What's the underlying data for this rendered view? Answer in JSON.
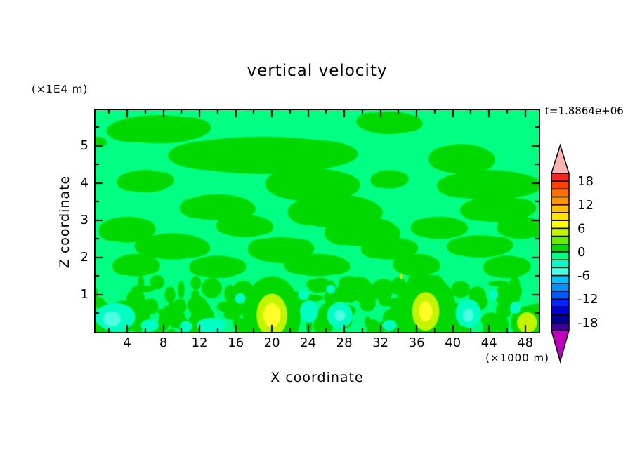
{
  "chart_data": {
    "type": "heatmap",
    "title": "vertical velocity",
    "time_label": "t=1.8864e+06",
    "xlabel": "X coordinate",
    "x_unit": "(×1000 m)",
    "ylabel": "Z coordinate",
    "y_unit": "(×1E4 m)",
    "x_range": [
      0.5,
      49.5
    ],
    "y_range": [
      0,
      5.96
    ],
    "x_ticks_major": [
      4,
      8,
      12,
      16,
      20,
      24,
      28,
      32,
      36,
      40,
      44,
      48
    ],
    "x_ticks_minor": [
      2,
      6,
      10,
      14,
      18,
      22,
      26,
      30,
      34,
      38,
      42,
      46
    ],
    "y_ticks_major": [
      1,
      2,
      3,
      4,
      5
    ],
    "y_ticks_minor": [
      0.5,
      1.5,
      2.5,
      3.5,
      4.5,
      5.5
    ],
    "contour_interval": 2,
    "colorbar": {
      "labels": [
        18,
        12,
        6,
        0,
        -6,
        -12,
        -18
      ],
      "over_color": "#ffb4b4",
      "under_color": "#be00be",
      "boxes": [
        {
          "from": 18,
          "to": 20,
          "color": "#f52525"
        },
        {
          "from": 16,
          "to": 18,
          "color": "#ff4000"
        },
        {
          "from": 14,
          "to": 16,
          "color": "#ff6e00"
        },
        {
          "from": 12,
          "to": 14,
          "color": "#ff9600"
        },
        {
          "from": 10,
          "to": 12,
          "color": "#ffbe00"
        },
        {
          "from": 8,
          "to": 10,
          "color": "#ffe100"
        },
        {
          "from": 6,
          "to": 8,
          "color": "#ffff00"
        },
        {
          "from": 4,
          "to": 6,
          "color": "#c3f500"
        },
        {
          "from": 2,
          "to": 4,
          "color": "#69e800"
        },
        {
          "from": 0,
          "to": 2,
          "color": "#00d900"
        },
        {
          "from": -2,
          "to": 0,
          "color": "#00ff82"
        },
        {
          "from": -4,
          "to": -2,
          "color": "#00ffc3"
        },
        {
          "from": -6,
          "to": -4,
          "color": "#4cffe1"
        },
        {
          "from": -8,
          "to": -6,
          "color": "#00c3ff"
        },
        {
          "from": -10,
          "to": -8,
          "color": "#0091ff"
        },
        {
          "from": -12,
          "to": -10,
          "color": "#005aff"
        },
        {
          "from": -14,
          "to": -12,
          "color": "#0023ff"
        },
        {
          "from": -16,
          "to": -14,
          "color": "#0000dc"
        },
        {
          "from": -18,
          "to": -16,
          "color": "#000096"
        },
        {
          "from": -20,
          "to": -18,
          "color": "#3c0096"
        }
      ]
    },
    "field": {
      "background_color": "#00ff82",
      "background_value_range": [
        -2,
        0
      ],
      "green_color": "#00d900",
      "green_value_range": [
        0,
        2
      ],
      "green_blobs": [
        [
          7.5,
          5.45,
          5.5,
          0.38
        ],
        [
          33,
          5.62,
          3.5,
          0.3
        ],
        [
          0.8,
          5.1,
          0.9,
          0.14
        ],
        [
          19,
          4.75,
          10,
          0.5
        ],
        [
          41,
          4.65,
          3.5,
          0.4
        ],
        [
          6,
          4.05,
          3,
          0.3
        ],
        [
          24.5,
          3.95,
          5,
          0.45
        ],
        [
          33,
          4.1,
          2,
          0.25
        ],
        [
          44,
          3.95,
          5.5,
          0.4
        ],
        [
          14,
          3.35,
          4,
          0.35
        ],
        [
          27,
          3.25,
          5,
          0.45
        ],
        [
          45,
          3.3,
          4,
          0.35
        ],
        [
          4,
          2.75,
          3,
          0.35
        ],
        [
          17,
          2.85,
          3,
          0.3
        ],
        [
          30,
          2.7,
          4,
          0.4
        ],
        [
          38.5,
          2.8,
          3,
          0.3
        ],
        [
          47.5,
          2.8,
          2.5,
          0.3
        ],
        [
          9,
          2.3,
          4,
          0.35
        ],
        [
          21,
          2.2,
          3.5,
          0.35
        ],
        [
          33,
          2.25,
          3,
          0.3
        ],
        [
          43,
          2.3,
          3.5,
          0.3
        ],
        [
          5,
          1.8,
          2.5,
          0.3
        ],
        [
          14,
          1.75,
          3,
          0.3
        ],
        [
          25,
          1.8,
          3.5,
          0.3
        ],
        [
          36,
          1.8,
          2.5,
          0.3
        ],
        [
          46,
          1.75,
          2.5,
          0.3
        ]
      ],
      "turbulence": {
        "seed": 7,
        "count": 150,
        "x_min": 0.5,
        "x_max": 49.5,
        "z_max": 1.35,
        "rx_min": 0.3,
        "rx_max": 1.3,
        "rz_min": 0.08,
        "rz_max": 0.28
      },
      "cyan_patches": [
        {
          "x": 2.7,
          "z": 0.4,
          "rx": 2.2,
          "rz": 0.38,
          "color": "#00ffc3"
        },
        {
          "x": 2.3,
          "z": 0.35,
          "rx": 1.0,
          "rz": 0.2,
          "color": "#4cffe1"
        },
        {
          "x": 6.5,
          "z": 0.18,
          "rx": 1.0,
          "rz": 0.16,
          "color": "#00ffc3"
        },
        {
          "x": 10.5,
          "z": 0.15,
          "rx": 0.7,
          "rz": 0.14,
          "color": "#00ffc3"
        },
        {
          "x": 13.3,
          "z": 0.18,
          "rx": 1.6,
          "rz": 0.2,
          "color": "#00ffc3"
        },
        {
          "x": 16.5,
          "z": 0.9,
          "rx": 0.6,
          "rz": 0.14,
          "color": "#00ffc3"
        },
        {
          "x": 24.1,
          "z": 0.55,
          "rx": 1.0,
          "rz": 0.3,
          "color": "#00ffc3"
        },
        {
          "x": 23.5,
          "z": 1.0,
          "rx": 0.6,
          "rz": 0.14,
          "color": "#00ffc3"
        },
        {
          "x": 27.5,
          "z": 0.45,
          "rx": 1.4,
          "rz": 0.35,
          "color": "#00ffc3"
        },
        {
          "x": 27.5,
          "z": 0.45,
          "rx": 0.6,
          "rz": 0.16,
          "color": "#4cffe1"
        },
        {
          "x": 26.5,
          "z": 1.15,
          "rx": 0.5,
          "rz": 0.12,
          "color": "#00ffc3"
        },
        {
          "x": 33.0,
          "z": 0.18,
          "rx": 0.8,
          "rz": 0.14,
          "color": "#00ffc3"
        },
        {
          "x": 41.7,
          "z": 0.5,
          "rx": 1.4,
          "rz": 0.38,
          "color": "#00ffc3"
        },
        {
          "x": 41.7,
          "z": 0.45,
          "rx": 0.6,
          "rz": 0.18,
          "color": "#4cffe1"
        },
        {
          "x": 46.9,
          "z": 0.65,
          "rx": 0.6,
          "rz": 0.16,
          "color": "#00ffc3"
        },
        {
          "x": 44.5,
          "z": 1.0,
          "rx": 0.5,
          "rz": 0.14,
          "color": "#00ffc3"
        }
      ],
      "hotspots": [
        {
          "x": 20.0,
          "z": 0.45,
          "layers": [
            [
              "#00d900",
              3.2,
              1.05
            ],
            [
              "#c3f500",
              1.7,
              0.58
            ],
            [
              "#ffff28",
              0.95,
              0.33
            ]
          ]
        },
        {
          "x": 37.0,
          "z": 0.55,
          "layers": [
            [
              "#00d900",
              3.4,
              1.0
            ],
            [
              "#c3f500",
              1.5,
              0.52
            ],
            [
              "#ffff28",
              0.75,
              0.27
            ]
          ]
        },
        {
          "x": 48.2,
          "z": 0.25,
          "layers": [
            [
              "#00d900",
              1.8,
              0.45
            ],
            [
              "#c3f500",
              1.1,
              0.28
            ]
          ]
        },
        {
          "x": 34.3,
          "z": 1.5,
          "layers": [
            [
              "#c3f500",
              0.18,
              0.08
            ]
          ]
        }
      ]
    },
    "style": {
      "frame_color": "#000000",
      "tick_major_len": 10,
      "tick_minor_len": 5,
      "tick_width": 2
    }
  }
}
